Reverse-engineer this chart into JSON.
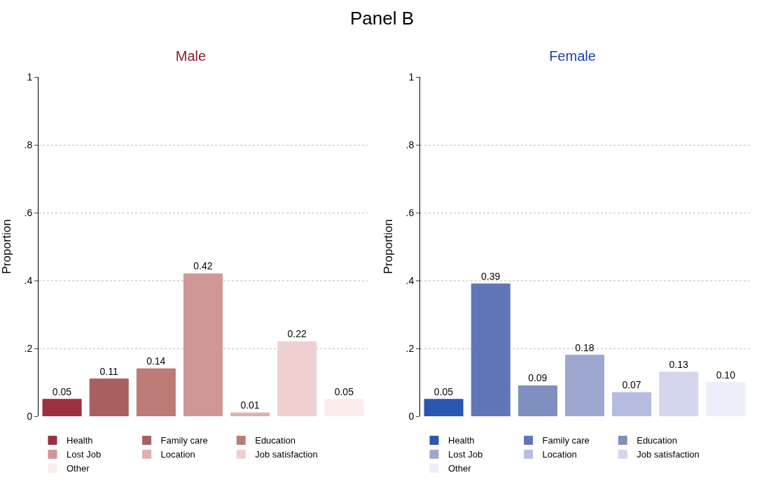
{
  "chart_data": [
    {
      "type": "bar",
      "title": "Male",
      "ylabel": "Proportion",
      "annotations": [
        "Panel B"
      ],
      "categories": [
        null,
        null,
        null,
        null,
        null,
        null,
        null
      ],
      "ylim": [
        0,
        1
      ],
      "yticks": [
        {
          "value": 0,
          "label": "0"
        },
        {
          "value": 0.2,
          "label": ".2"
        },
        {
          "value": 0.4,
          "label": ".4"
        },
        {
          "value": 0.6,
          "label": ".6"
        },
        {
          "value": 0.8,
          "label": ".8"
        },
        {
          "value": 1,
          "label": "1"
        }
      ],
      "grid": "y",
      "line_style": "dotted",
      "legend": "bottom",
      "series": [
        {
          "name": "Health",
          "color": "#9e2f3e",
          "values": [
            0.05,
            null,
            null,
            null,
            null,
            null,
            null
          ],
          "value_labels": [
            "0.05",
            null,
            null,
            null,
            null,
            null,
            null
          ]
        },
        {
          "name": "Family care",
          "color": "#a85f5f",
          "values": [
            null,
            0.11,
            null,
            null,
            null,
            null,
            null
          ],
          "value_labels": [
            null,
            "0.11",
            null,
            null,
            null,
            null,
            null
          ]
        },
        {
          "name": "Education",
          "color": "#bd7b77",
          "values": [
            null,
            null,
            0.14,
            null,
            null,
            null,
            null
          ],
          "value_labels": [
            null,
            null,
            "0.14",
            null,
            null,
            null,
            null
          ]
        },
        {
          "name": "Lost Job",
          "color": "#cf9896",
          "values": [
            null,
            null,
            null,
            0.42,
            null,
            null,
            null
          ],
          "value_labels": [
            null,
            null,
            null,
            "0.42",
            null,
            null,
            null
          ]
        },
        {
          "name": "Location",
          "color": "#ddb0ac",
          "values": [
            null,
            null,
            null,
            null,
            0.01,
            null,
            null
          ],
          "value_labels": [
            null,
            null,
            null,
            null,
            "0.01",
            null,
            null
          ]
        },
        {
          "name": "Job satisfaction",
          "color": "#efd0d0",
          "values": [
            null,
            null,
            null,
            null,
            null,
            0.22,
            null
          ],
          "value_labels": [
            null,
            null,
            null,
            null,
            null,
            "0.22",
            null
          ]
        },
        {
          "name": "Other",
          "color": "#fbeceb",
          "values": [
            null,
            null,
            null,
            null,
            null,
            null,
            0.05
          ],
          "value_labels": [
            null,
            null,
            null,
            null,
            null,
            null,
            "0.05"
          ]
        }
      ]
    },
    {
      "type": "bar",
      "title": "Female",
      "ylabel": "Proportion",
      "categories": [
        null,
        null,
        null,
        null,
        null,
        null,
        null
      ],
      "ylim": [
        0,
        1
      ],
      "yticks": [
        {
          "value": 0,
          "label": "0"
        },
        {
          "value": 0.2,
          "label": ".2"
        },
        {
          "value": 0.4,
          "label": ".4"
        },
        {
          "value": 0.6,
          "label": ".6"
        },
        {
          "value": 0.8,
          "label": ".8"
        },
        {
          "value": 1,
          "label": "1"
        }
      ],
      "grid": "y",
      "line_style": "dotted",
      "legend": "bottom",
      "series": [
        {
          "name": "Health",
          "color": "#2c57b0",
          "values": [
            0.05,
            null,
            null,
            null,
            null,
            null,
            null
          ],
          "value_labels": [
            "0.05",
            null,
            null,
            null,
            null,
            null,
            null
          ]
        },
        {
          "name": "Family care",
          "color": "#6176b6",
          "values": [
            null,
            0.39,
            null,
            null,
            null,
            null,
            null
          ],
          "value_labels": [
            null,
            "0.39",
            null,
            null,
            null,
            null,
            null
          ]
        },
        {
          "name": "Education",
          "color": "#7f8fc0",
          "values": [
            null,
            null,
            0.09,
            null,
            null,
            null,
            null
          ],
          "value_labels": [
            null,
            null,
            "0.09",
            null,
            null,
            null,
            null
          ]
        },
        {
          "name": "Lost Job",
          "color": "#9ea7d0",
          "values": [
            null,
            null,
            null,
            0.18,
            null,
            null,
            null
          ],
          "value_labels": [
            null,
            null,
            null,
            "0.18",
            null,
            null,
            null
          ]
        },
        {
          "name": "Location",
          "color": "#b6bcdf",
          "values": [
            null,
            null,
            null,
            null,
            0.07,
            null,
            null
          ],
          "value_labels": [
            null,
            null,
            null,
            null,
            "0.07",
            null,
            null
          ]
        },
        {
          "name": "Job satisfaction",
          "color": "#d3d6ec",
          "values": [
            null,
            null,
            null,
            null,
            null,
            0.13,
            null
          ],
          "value_labels": [
            null,
            null,
            null,
            null,
            null,
            "0.13",
            null
          ]
        },
        {
          "name": "Other",
          "color": "#eceefa",
          "values": [
            null,
            null,
            null,
            null,
            null,
            null,
            0.1
          ],
          "value_labels": [
            null,
            null,
            null,
            null,
            null,
            null,
            "0.10"
          ]
        }
      ]
    }
  ]
}
